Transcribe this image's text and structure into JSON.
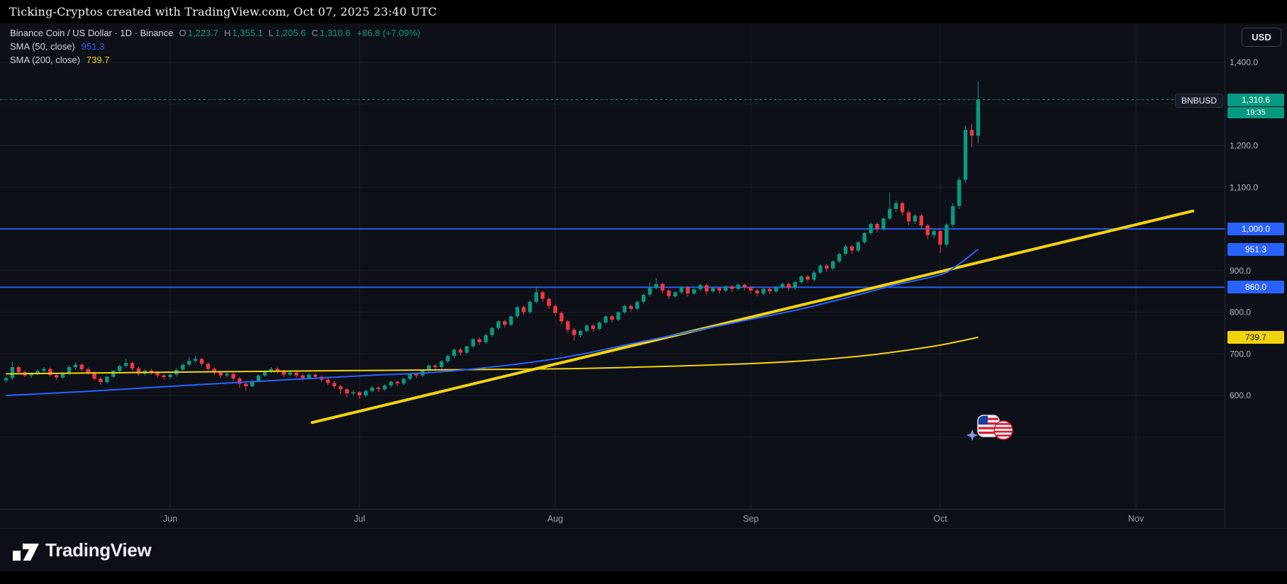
{
  "topbar": {
    "text": "Ticking-Cryptos created with TradingView.com, Oct 07, 2025 23:40 UTC"
  },
  "header": {
    "symbol_title": "Binance Coin / US Dollar · 1D · Binance",
    "ohlc": {
      "o_label": "O",
      "o": "1,223.7",
      "h_label": "H",
      "h": "1,355.1",
      "l_label": "L",
      "l": "1,205.6",
      "c_label": "C",
      "c": "1,310.6",
      "change": "+86.8 (+7.09%)"
    },
    "sma50": {
      "label": "SMA (50, close)",
      "value": "951.3"
    },
    "sma200": {
      "label": "SMA (200, close)",
      "value": "739.7"
    }
  },
  "currency_button": {
    "label": "USD"
  },
  "colors": {
    "bg": "#0d1017",
    "up": "#089981",
    "down": "#f23645",
    "blue": "#2962ff",
    "yellow": "#f2d40d",
    "grid": "rgba(150,162,200,0.10)",
    "sep": "#232b3b",
    "axis_text": "#b2b5be"
  },
  "price_scale": {
    "ticks": [
      {
        "price": 1400,
        "label": "1,400.0"
      },
      {
        "price": 1200,
        "label": "1,200.0"
      },
      {
        "price": 1100,
        "label": "1,100.0"
      },
      {
        "price": 900,
        "label": "900.0"
      },
      {
        "price": 800,
        "label": "800.0"
      },
      {
        "price": 700,
        "label": "700.0"
      },
      {
        "price": 600,
        "label": "600.0"
      }
    ],
    "badges": {
      "symbol_tag": "BNBUSD",
      "last_price": {
        "value": 1310.6,
        "label": "1,310.6"
      },
      "countdown": "19:35",
      "levels": [
        {
          "price": 1000,
          "label": "1,000.0",
          "color": "#2962ff",
          "text_color": "#ffffff"
        },
        {
          "price": 951.3,
          "label": "951.3",
          "color": "#2962ff",
          "text_color": "#ffffff"
        },
        {
          "price": 860,
          "label": "860.0",
          "color": "#2962ff",
          "text_color": "#ffffff"
        },
        {
          "price": 739.7,
          "label": "739.7",
          "color": "#f2d40d",
          "text_color": "#111111"
        }
      ]
    }
  },
  "time_scale": {
    "months": [
      {
        "label": "Jun",
        "day_index": 26
      },
      {
        "label": "Jul",
        "day_index": 56
      },
      {
        "label": "Aug",
        "day_index": 87
      },
      {
        "label": "Sep",
        "day_index": 118
      },
      {
        "label": "Oct",
        "day_index": 148
      },
      {
        "label": "Nov",
        "day_index": 179
      }
    ]
  },
  "chart_data": {
    "type": "candlestick",
    "symbol": "BNBUSD",
    "interval": "1D",
    "exchange": "Binance",
    "price_axis_labeled_range": [
      600,
      1400
    ],
    "grid_step": 100,
    "candles_ohlc": [
      [
        636,
        645,
        630,
        642
      ],
      [
        642,
        681,
        638,
        668
      ],
      [
        668,
        672,
        652,
        656
      ],
      [
        656,
        661,
        644,
        648
      ],
      [
        648,
        656,
        642,
        652
      ],
      [
        652,
        663,
        648,
        659
      ],
      [
        659,
        668,
        653,
        664
      ],
      [
        664,
        667,
        645,
        649
      ],
      [
        649,
        653,
        638,
        643
      ],
      [
        643,
        656,
        640,
        652
      ],
      [
        652,
        672,
        649,
        668
      ],
      [
        668,
        679,
        662,
        674
      ],
      [
        674,
        677,
        658,
        663
      ],
      [
        663,
        667,
        650,
        655
      ],
      [
        655,
        658,
        636,
        640
      ],
      [
        640,
        645,
        626,
        632
      ],
      [
        632,
        648,
        629,
        645
      ],
      [
        645,
        662,
        642,
        659
      ],
      [
        659,
        674,
        655,
        671
      ],
      [
        671,
        688,
        666,
        678
      ],
      [
        678,
        681,
        660,
        665
      ],
      [
        665,
        669,
        647,
        652
      ],
      [
        652,
        663,
        648,
        660
      ],
      [
        660,
        664,
        650,
        655
      ],
      [
        655,
        659,
        643,
        648
      ],
      [
        648,
        652,
        638,
        644
      ],
      [
        644,
        654,
        640,
        650
      ],
      [
        650,
        665,
        646,
        662
      ],
      [
        662,
        677,
        658,
        674
      ],
      [
        674,
        692,
        670,
        683
      ],
      [
        683,
        695,
        678,
        688
      ],
      [
        688,
        691,
        671,
        676
      ],
      [
        676,
        680,
        659,
        664
      ],
      [
        664,
        668,
        649,
        655
      ],
      [
        655,
        659,
        642,
        648
      ],
      [
        648,
        657,
        644,
        652
      ],
      [
        652,
        655,
        636,
        641
      ],
      [
        641,
        645,
        618,
        628
      ],
      [
        628,
        633,
        612,
        622
      ],
      [
        622,
        638,
        619,
        635
      ],
      [
        635,
        651,
        632,
        648
      ],
      [
        648,
        661,
        645,
        657
      ],
      [
        657,
        668,
        653,
        664
      ],
      [
        664,
        667,
        652,
        658
      ],
      [
        658,
        662,
        645,
        650
      ],
      [
        650,
        659,
        646,
        655
      ],
      [
        655,
        658,
        643,
        648
      ],
      [
        648,
        652,
        636,
        642
      ],
      [
        642,
        653,
        639,
        650
      ],
      [
        650,
        653,
        639,
        645
      ],
      [
        645,
        648,
        632,
        638
      ],
      [
        638,
        642,
        624,
        630
      ],
      [
        630,
        634,
        616,
        622
      ],
      [
        622,
        626,
        603,
        615
      ],
      [
        615,
        618,
        595,
        605
      ],
      [
        605,
        613,
        599,
        608
      ],
      [
        608,
        610,
        592,
        600
      ],
      [
        600,
        614,
        596,
        611
      ],
      [
        611,
        623,
        607,
        619
      ],
      [
        619,
        622,
        608,
        615
      ],
      [
        615,
        627,
        611,
        624
      ],
      [
        624,
        636,
        620,
        633
      ],
      [
        633,
        636,
        622,
        629
      ],
      [
        629,
        643,
        625,
        640
      ],
      [
        640,
        655,
        636,
        652
      ],
      [
        652,
        655,
        641,
        648
      ],
      [
        648,
        663,
        644,
        660
      ],
      [
        660,
        675,
        656,
        672
      ],
      [
        672,
        675,
        661,
        668
      ],
      [
        668,
        685,
        664,
        682
      ],
      [
        682,
        698,
        678,
        695
      ],
      [
        695,
        713,
        690,
        710
      ],
      [
        710,
        714,
        696,
        703
      ],
      [
        703,
        721,
        699,
        718
      ],
      [
        718,
        738,
        714,
        735
      ],
      [
        735,
        739,
        721,
        728
      ],
      [
        728,
        748,
        724,
        745
      ],
      [
        745,
        765,
        741,
        762
      ],
      [
        762,
        781,
        757,
        778
      ],
      [
        778,
        782,
        763,
        770
      ],
      [
        770,
        793,
        766,
        790
      ],
      [
        790,
        815,
        786,
        812
      ],
      [
        812,
        816,
        793,
        800
      ],
      [
        800,
        828,
        796,
        825
      ],
      [
        825,
        862,
        821,
        848
      ],
      [
        848,
        852,
        825,
        832
      ],
      [
        832,
        836,
        808,
        815
      ],
      [
        815,
        819,
        791,
        798
      ],
      [
        798,
        802,
        771,
        778
      ],
      [
        778,
        782,
        751,
        758
      ],
      [
        758,
        762,
        732,
        745
      ],
      [
        745,
        758,
        740,
        755
      ],
      [
        755,
        771,
        751,
        768
      ],
      [
        768,
        771,
        753,
        760
      ],
      [
        760,
        778,
        756,
        775
      ],
      [
        775,
        793,
        771,
        790
      ],
      [
        790,
        793,
        775,
        782
      ],
      [
        782,
        803,
        778,
        800
      ],
      [
        800,
        818,
        796,
        815
      ],
      [
        815,
        818,
        801,
        808
      ],
      [
        808,
        828,
        804,
        825
      ],
      [
        825,
        845,
        821,
        842
      ],
      [
        842,
        872,
        838,
        858
      ],
      [
        858,
        882,
        854,
        868
      ],
      [
        868,
        871,
        845,
        852
      ],
      [
        852,
        856,
        831,
        838
      ],
      [
        838,
        851,
        834,
        848
      ],
      [
        848,
        863,
        844,
        860
      ],
      [
        860,
        863,
        838,
        845
      ],
      [
        845,
        858,
        841,
        855
      ],
      [
        855,
        868,
        851,
        865
      ],
      [
        865,
        868,
        843,
        850
      ],
      [
        850,
        861,
        846,
        858
      ],
      [
        858,
        861,
        845,
        852
      ],
      [
        852,
        865,
        848,
        862
      ],
      [
        862,
        865,
        849,
        856
      ],
      [
        856,
        869,
        852,
        866
      ],
      [
        866,
        869,
        852,
        860
      ],
      [
        860,
        863,
        845,
        852
      ],
      [
        852,
        856,
        838,
        845
      ],
      [
        845,
        859,
        841,
        856
      ],
      [
        856,
        859,
        843,
        850
      ],
      [
        850,
        863,
        846,
        860
      ],
      [
        860,
        871,
        856,
        868
      ],
      [
        868,
        871,
        851,
        858
      ],
      [
        858,
        875,
        854,
        872
      ],
      [
        872,
        889,
        868,
        886
      ],
      [
        886,
        889,
        871,
        878
      ],
      [
        878,
        898,
        874,
        895
      ],
      [
        895,
        915,
        891,
        912
      ],
      [
        912,
        915,
        897,
        905
      ],
      [
        905,
        925,
        901,
        922
      ],
      [
        922,
        943,
        918,
        940
      ],
      [
        940,
        961,
        936,
        958
      ],
      [
        958,
        961,
        940,
        948
      ],
      [
        948,
        971,
        944,
        968
      ],
      [
        968,
        993,
        964,
        990
      ],
      [
        990,
        1016,
        986,
        1012
      ],
      [
        1012,
        1016,
        992,
        1000
      ],
      [
        1000,
        1028,
        996,
        1025
      ],
      [
        1025,
        1088,
        1021,
        1048
      ],
      [
        1048,
        1068,
        1040,
        1062
      ],
      [
        1062,
        1066,
        1032,
        1040
      ],
      [
        1040,
        1044,
        1010,
        1018
      ],
      [
        1018,
        1036,
        1012,
        1032
      ],
      [
        1032,
        1036,
        1000,
        1008
      ],
      [
        1008,
        1012,
        976,
        985
      ],
      [
        985,
        1000,
        978,
        995
      ],
      [
        995,
        998,
        942,
        962
      ],
      [
        962,
        1014,
        956,
        1010
      ],
      [
        1010,
        1062,
        1004,
        1055
      ],
      [
        1055,
        1125,
        1048,
        1118
      ],
      [
        1118,
        1248,
        1110,
        1238
      ],
      [
        1238,
        1252,
        1196,
        1223.8
      ],
      [
        1223.7,
        1355.1,
        1205.6,
        1310.6
      ]
    ],
    "sma50": {
      "name": "SMA (50, close)",
      "current": 951.3,
      "points": [
        [
          0,
          600
        ],
        [
          13,
          610
        ],
        [
          26,
          622
        ],
        [
          40,
          634
        ],
        [
          56,
          647
        ],
        [
          70,
          658
        ],
        [
          87,
          688
        ],
        [
          100,
          727
        ],
        [
          110,
          758
        ],
        [
          118,
          783
        ],
        [
          126,
          808
        ],
        [
          134,
          838
        ],
        [
          141,
          866
        ],
        [
          148,
          890
        ],
        [
          151,
          916
        ],
        [
          154,
          951.3
        ]
      ]
    },
    "sma200": {
      "name": "SMA (200, close)",
      "current": 739.7,
      "points": [
        [
          0,
          652
        ],
        [
          26,
          656
        ],
        [
          56,
          660
        ],
        [
          87,
          664
        ],
        [
          100,
          668
        ],
        [
          117,
          676
        ],
        [
          127,
          684
        ],
        [
          135,
          694
        ],
        [
          141,
          705
        ],
        [
          148,
          721
        ],
        [
          154,
          739.7
        ]
      ]
    },
    "trendline": {
      "from_day": 48.5,
      "from_price": 535,
      "to_day": 188,
      "to_price": 1043
    },
    "horizontal_lines": [
      {
        "price": 1000
      },
      {
        "price": 860
      }
    ],
    "last_price_line": {
      "price": 1310.6,
      "style": "dashed"
    }
  },
  "footer": {
    "logo_mark": "17",
    "logo_text": "TradingView"
  },
  "watermark": {
    "name": "ticking-cryptos-logo"
  }
}
